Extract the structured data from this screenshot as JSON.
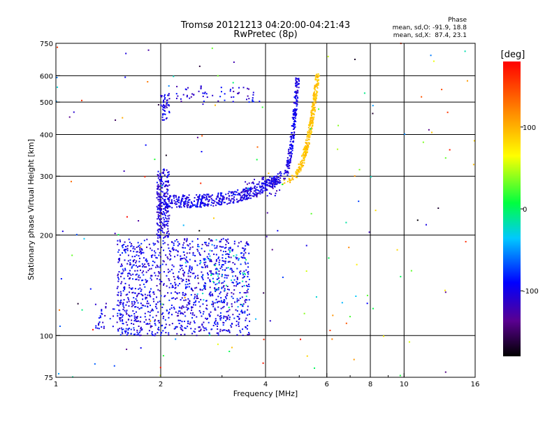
{
  "chart_data": {
    "type": "scatter",
    "title": "Tromsø 20121213 04:20:00-04:21:43",
    "subtitle": "RwPretec (8p)",
    "xlabel": "Frequency [MHz]",
    "ylabel": "Stationary phase Virtual Height [km]",
    "x_scale": "log",
    "y_scale": "log",
    "xlim": [
      1,
      16
    ],
    "ylim": [
      75,
      750
    ],
    "x_ticks": [
      1,
      2,
      4,
      6,
      8,
      10,
      16
    ],
    "x_tick_labels": [
      "1",
      "2",
      "4",
      "6",
      "8",
      "10",
      "16"
    ],
    "x_minor_ticks": [
      3,
      5,
      7,
      9
    ],
    "y_ticks": [
      75,
      100,
      200,
      300,
      400,
      500,
      600,
      750
    ],
    "y_tick_labels": [
      "75",
      "100",
      "200",
      "300",
      "400",
      "500",
      "600",
      "750"
    ],
    "grid": true,
    "grid_x": [
      2,
      4,
      6,
      8,
      10
    ],
    "grid_y": [
      100,
      200,
      300,
      400,
      500,
      600
    ],
    "stats": {
      "heading": "Phase",
      "line1": "mean, sd,O: -91.9, 18.8",
      "line2": "mean, sd,X:  87.4, 23.1"
    },
    "colorbar": {
      "label": "[deg]",
      "min": -180,
      "max": 180,
      "ticks": [
        100,
        0,
        -100
      ],
      "tick_labels": [
        "100",
        "0",
        "-100"
      ]
    },
    "series": [
      {
        "component": "O",
        "phase_mean_deg": -91.9,
        "phase_sd_deg": 18.8
      },
      {
        "component": "X",
        "phase_mean_deg": 87.4,
        "phase_sd_deg": 23.1
      }
    ],
    "trace_regions": [
      {
        "region": "E/F1 cloud",
        "x_range_mhz": [
          1.5,
          3.6
        ],
        "y_range_km": [
          100,
          195
        ],
        "phase_deg": -100
      },
      {
        "region": "F lower edge",
        "x_range_mhz": [
          2.0,
          2.1
        ],
        "y_range_km": [
          195,
          310
        ],
        "phase_deg": -105
      },
      {
        "region": "F2 O trace",
        "x_range_mhz": [
          2.0,
          4.5
        ],
        "y_range_km": [
          250,
          300
        ],
        "phase_deg": -100
      },
      {
        "region": "F2 cusp O",
        "x_range_mhz": [
          4.4,
          5.0
        ],
        "y_range_km": [
          300,
          600
        ],
        "phase_deg": -100
      },
      {
        "region": "F2 X trace",
        "x_range_mhz": [
          4.4,
          5.7
        ],
        "y_range_km": [
          290,
          610
        ],
        "phase_deg": 95
      },
      {
        "region": "upper echoes",
        "x_range_mhz": [
          2.0,
          3.7
        ],
        "y_range_km": [
          440,
          600
        ],
        "phase_deg": -100
      }
    ]
  }
}
